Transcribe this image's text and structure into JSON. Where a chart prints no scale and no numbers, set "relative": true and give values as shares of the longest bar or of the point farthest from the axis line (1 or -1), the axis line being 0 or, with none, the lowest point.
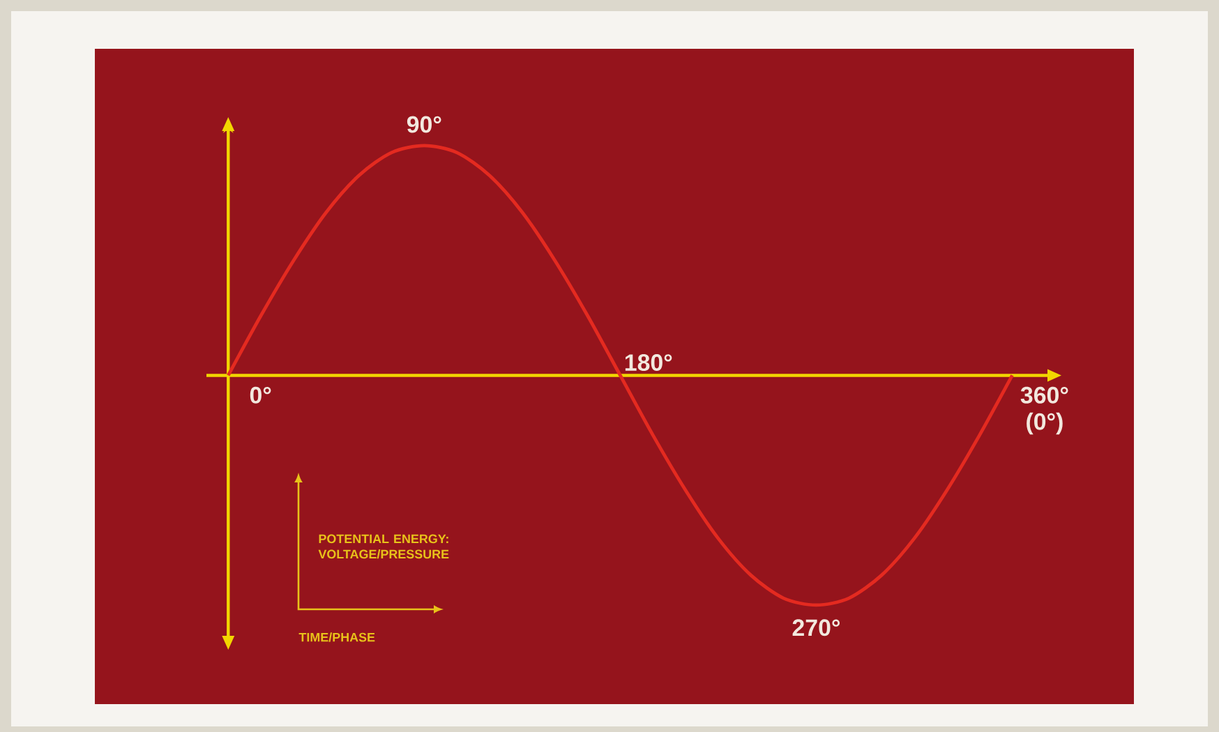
{
  "chart_data": {
    "type": "line",
    "relative": true,
    "xlabel": "TIME/PHASE",
    "ylabel": "POTENTIAL ENERGY: VOLTAGE/PRESSURE",
    "categories": [
      null,
      null,
      null,
      null,
      null,
      null,
      null,
      null,
      null,
      null,
      null,
      null,
      null,
      null,
      null,
      null,
      null,
      null,
      null,
      null,
      null,
      null,
      null,
      null,
      null
    ],
    "series": [
      {
        "color": "#e42a20",
        "values": [
          0,
          0.26,
          0.5,
          0.71,
          0.87,
          0.97,
          1,
          0.97,
          0.87,
          0.71,
          0.5,
          0.26,
          0,
          -0.26,
          -0.5,
          -0.71,
          -0.87,
          -0.97,
          -1,
          -0.97,
          -0.87,
          -0.71,
          -0.5,
          -0.26,
          0
        ]
      }
    ],
    "annotations": [
      "0°",
      "90°",
      "180°",
      "270°",
      "360° (0°)"
    ],
    "ref_lines": [
      {
        "axis": "y",
        "value": 0,
        "color": "#f2d600"
      }
    ],
    "marker": "none",
    "line_style": "solid"
  }
}
